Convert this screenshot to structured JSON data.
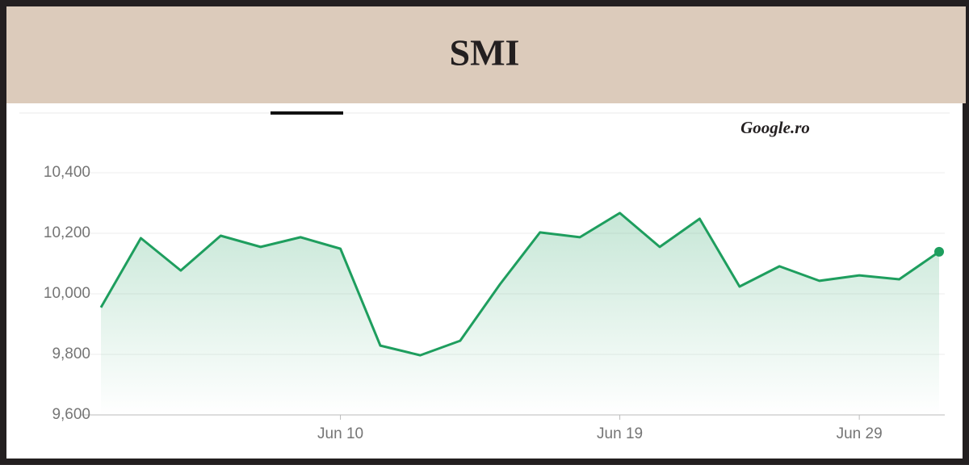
{
  "header": {
    "title": "SMI",
    "source": "Google.ro"
  },
  "chart_data": {
    "type": "line",
    "categories": [
      null,
      null,
      null,
      null,
      null,
      null,
      "Jun 10",
      null,
      null,
      null,
      null,
      null,
      null,
      "Jun 19",
      null,
      null,
      null,
      null,
      null,
      "Jun 29",
      null,
      null
    ],
    "series": [
      {
        "name": "SMI",
        "color": "#1e9e5e",
        "values": [
          9955,
          10184,
          10077,
          10192,
          10155,
          10187,
          10149,
          9829,
          9797,
          9845,
          10032,
          10203,
          10187,
          10267,
          10155,
          10248,
          10024,
          10091,
          10043,
          10061,
          10048,
          10139
        ]
      }
    ],
    "ylim": [
      9600,
      10400
    ],
    "yticks": [
      {
        "value": 9600,
        "label": "9,600"
      },
      {
        "value": 9800,
        "label": "9,800"
      },
      {
        "value": 10000,
        "label": "10,000"
      },
      {
        "value": 10200,
        "label": "10,200"
      },
      {
        "value": 10400,
        "label": "10,400"
      }
    ],
    "grid": true
  }
}
